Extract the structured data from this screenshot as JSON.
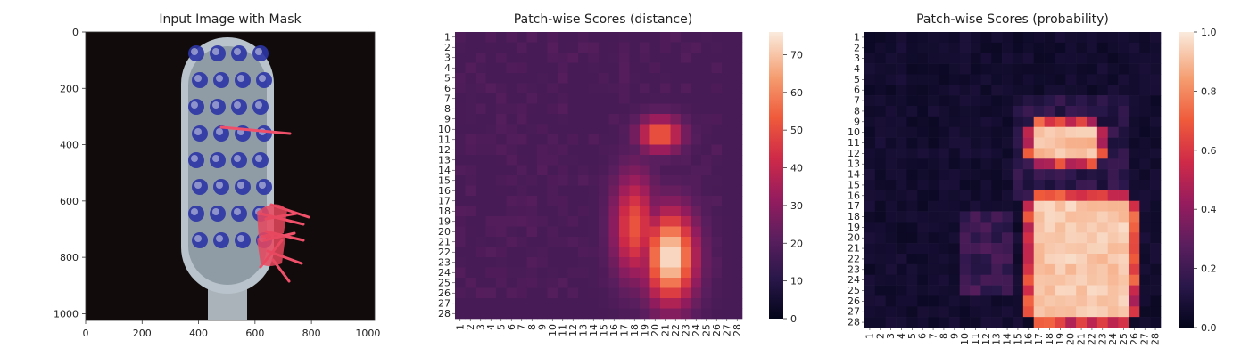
{
  "figure": {
    "panels": [
      {
        "title": "Input Image with Mask"
      },
      {
        "title": "Patch-wise Scores (distance)"
      },
      {
        "title": "Patch-wise Scores (probability)"
      }
    ]
  },
  "chart_data": [
    {
      "type": "image",
      "title": "Input Image with Mask",
      "xticks": [
        0,
        200,
        400,
        600,
        800,
        1000
      ],
      "yticks": [
        0,
        200,
        400,
        600,
        800,
        1000
      ],
      "xlim": [
        0,
        1024
      ],
      "ylim": [
        1024,
        0
      ],
      "content": "toothbrush head photograph with red mask overlay marking defects"
    },
    {
      "type": "heatmap",
      "title": "Patch-wise Scores (distance)",
      "rows": 28,
      "cols": 28,
      "row_labels": [
        "1",
        "2",
        "3",
        "4",
        "5",
        "6",
        "7",
        "8",
        "9",
        "10",
        "11",
        "12",
        "13",
        "14",
        "15",
        "16",
        "17",
        "18",
        "19",
        "20",
        "21",
        "22",
        "23",
        "24",
        "25",
        "26",
        "27",
        "28"
      ],
      "col_labels": [
        "1",
        "2",
        "3",
        "4",
        "5",
        "6",
        "7",
        "8",
        "9",
        "10",
        "11",
        "12",
        "13",
        "14",
        "15",
        "16",
        "17",
        "18",
        "19",
        "20",
        "21",
        "22",
        "23",
        "24",
        "25",
        "26",
        "27",
        "28"
      ],
      "colorbar": {
        "min": 0,
        "max": 76,
        "ticks": [
          0,
          10,
          20,
          30,
          40,
          50,
          60,
          70
        ]
      },
      "colormap": "rocket",
      "base_level": 17,
      "hotspots": [
        {
          "row": 10.5,
          "col": 20.5,
          "rr": 1.8,
          "rc": 2.3,
          "peak": 56
        },
        {
          "row": 22.5,
          "col": 21.5,
          "rr": 4.8,
          "rc": 2.6,
          "peak": 76
        },
        {
          "row": 19.5,
          "col": 18.0,
          "rr": 5.5,
          "rc": 2.2,
          "peak": 52
        }
      ]
    },
    {
      "type": "heatmap",
      "title": "Patch-wise Scores (probability)",
      "rows": 28,
      "cols": 28,
      "row_labels": [
        "1",
        "2",
        "3",
        "4",
        "5",
        "6",
        "7",
        "8",
        "9",
        "10",
        "11",
        "12",
        "13",
        "14",
        "15",
        "16",
        "17",
        "18",
        "19",
        "20",
        "21",
        "22",
        "23",
        "24",
        "25",
        "26",
        "27",
        "28"
      ],
      "col_labels": [
        "1",
        "2",
        "3",
        "4",
        "5",
        "6",
        "7",
        "8",
        "9",
        "10",
        "11",
        "12",
        "13",
        "14",
        "15",
        "16",
        "17",
        "18",
        "19",
        "20",
        "21",
        "22",
        "23",
        "24",
        "25",
        "26",
        "27",
        "28"
      ],
      "colorbar": {
        "min": 0.0,
        "max": 1.0,
        "ticks": [
          "0.0",
          "0.2",
          "0.4",
          "0.6",
          "0.8",
          "1.0"
        ]
      },
      "colormap": "rocket",
      "regions": [
        {
          "row_from": 10,
          "row_to": 12,
          "col_from": 17,
          "col_to": 22,
          "value": 0.95
        },
        {
          "row_from": 17,
          "row_to": 27,
          "col_from": 17,
          "col_to": 25,
          "value": 0.97
        }
      ]
    }
  ]
}
